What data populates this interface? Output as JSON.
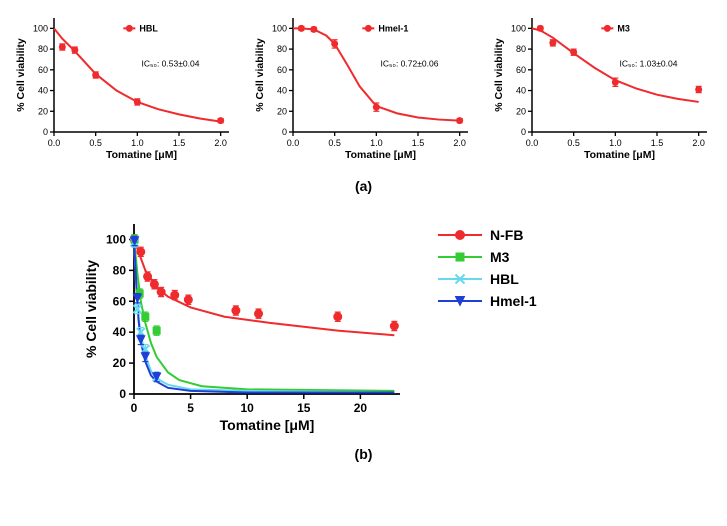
{
  "panelA": {
    "label": "(a)",
    "shared": {
      "xlabel": "Tomatine [μM]",
      "ylabel": "% Cell viability",
      "xlim": [
        0,
        2.1
      ],
      "ylim": [
        0,
        110
      ],
      "xtick_step": 0.5,
      "ytick_step": 20,
      "axis_color": "#000000",
      "tick_fontsize": 9,
      "label_fontsize": 10.5,
      "label_fontweight": "bold",
      "marker": "circle",
      "marker_color": "#ef2b2d",
      "marker_size": 6,
      "line_color": "#ef2b2d",
      "line_width": 2,
      "error_bar_color": "#ef2b2d",
      "background_color": "#ffffff"
    },
    "charts": [
      {
        "legend": "HBL",
        "ic50_label": "IC₅₀: 0.53±0.04",
        "points": [
          {
            "x": 0.1,
            "y": 82,
            "err": 3
          },
          {
            "x": 0.25,
            "y": 79,
            "err": 3
          },
          {
            "x": 0.5,
            "y": 55,
            "err": 3
          },
          {
            "x": 1.0,
            "y": 29,
            "err": 3
          },
          {
            "x": 2.0,
            "y": 11,
            "err": 2
          }
        ],
        "curve": [
          {
            "x": 0.0,
            "y": 100
          },
          {
            "x": 0.1,
            "y": 90
          },
          {
            "x": 0.25,
            "y": 78
          },
          {
            "x": 0.5,
            "y": 56
          },
          {
            "x": 0.75,
            "y": 40
          },
          {
            "x": 1.0,
            "y": 29
          },
          {
            "x": 1.25,
            "y": 22
          },
          {
            "x": 1.5,
            "y": 17
          },
          {
            "x": 1.75,
            "y": 13
          },
          {
            "x": 2.0,
            "y": 10
          }
        ]
      },
      {
        "legend": "Hmel-1",
        "ic50_label": "IC₅₀: 0.72±0.06",
        "points": [
          {
            "x": 0.1,
            "y": 100,
            "err": 2
          },
          {
            "x": 0.25,
            "y": 99,
            "err": 2
          },
          {
            "x": 0.5,
            "y": 85,
            "err": 4
          },
          {
            "x": 1.0,
            "y": 24,
            "err": 4
          },
          {
            "x": 2.0,
            "y": 11,
            "err": 2
          }
        ],
        "curve": [
          {
            "x": 0.0,
            "y": 100
          },
          {
            "x": 0.1,
            "y": 100
          },
          {
            "x": 0.25,
            "y": 99
          },
          {
            "x": 0.4,
            "y": 93
          },
          {
            "x": 0.5,
            "y": 85
          },
          {
            "x": 0.65,
            "y": 65
          },
          {
            "x": 0.8,
            "y": 44
          },
          {
            "x": 1.0,
            "y": 25
          },
          {
            "x": 1.25,
            "y": 18
          },
          {
            "x": 1.5,
            "y": 14
          },
          {
            "x": 1.75,
            "y": 12
          },
          {
            "x": 2.0,
            "y": 11
          }
        ]
      },
      {
        "legend": "M3",
        "ic50_label": "IC₅₀: 1.03±0.04",
        "points": [
          {
            "x": 0.1,
            "y": 100,
            "err": 2
          },
          {
            "x": 0.25,
            "y": 86,
            "err": 3
          },
          {
            "x": 0.5,
            "y": 77,
            "err": 3
          },
          {
            "x": 1.0,
            "y": 48,
            "err": 4
          },
          {
            "x": 2.0,
            "y": 41,
            "err": 3
          }
        ],
        "curve": [
          {
            "x": 0.0,
            "y": 100
          },
          {
            "x": 0.1,
            "y": 98
          },
          {
            "x": 0.25,
            "y": 91
          },
          {
            "x": 0.5,
            "y": 76
          },
          {
            "x": 0.75,
            "y": 62
          },
          {
            "x": 1.0,
            "y": 50
          },
          {
            "x": 1.25,
            "y": 42
          },
          {
            "x": 1.5,
            "y": 36
          },
          {
            "x": 1.75,
            "y": 32
          },
          {
            "x": 2.0,
            "y": 29
          }
        ]
      }
    ]
  },
  "panelB": {
    "label": "(b)",
    "xlabel": "Tomatine [μM]",
    "ylabel": "% Cell viability",
    "xlim": [
      0,
      23.5
    ],
    "ylim": [
      0,
      110
    ],
    "xtick_step": 5,
    "ytick_step": 20,
    "axis_color": "#000000",
    "tick_fontsize": 12,
    "label_fontsize": 14,
    "label_fontweight": "bold",
    "background_color": "#ffffff",
    "line_width": 2,
    "marker_size": 8,
    "error_bar_color_per_series": true,
    "series": [
      {
        "name": "N-FB",
        "color": "#ef2b2d",
        "marker": "circle",
        "points": [
          {
            "x": 0.02,
            "y": 100,
            "err": 3
          },
          {
            "x": 0.6,
            "y": 92,
            "err": 3
          },
          {
            "x": 1.2,
            "y": 76,
            "err": 3
          },
          {
            "x": 1.8,
            "y": 71,
            "err": 3
          },
          {
            "x": 2.4,
            "y": 66,
            "err": 3
          },
          {
            "x": 3.6,
            "y": 64,
            "err": 3
          },
          {
            "x": 4.8,
            "y": 61,
            "err": 3
          },
          {
            "x": 9.0,
            "y": 54,
            "err": 3
          },
          {
            "x": 11.0,
            "y": 52,
            "err": 3
          },
          {
            "x": 18.0,
            "y": 50,
            "err": 3
          },
          {
            "x": 23.0,
            "y": 44,
            "err": 3
          }
        ],
        "curve": [
          {
            "x": 0.0,
            "y": 100
          },
          {
            "x": 0.5,
            "y": 90
          },
          {
            "x": 1.0,
            "y": 80
          },
          {
            "x": 2.0,
            "y": 69
          },
          {
            "x": 3.0,
            "y": 63
          },
          {
            "x": 5.0,
            "y": 56
          },
          {
            "x": 8.0,
            "y": 50
          },
          {
            "x": 12.0,
            "y": 46
          },
          {
            "x": 18.0,
            "y": 41
          },
          {
            "x": 23.0,
            "y": 38
          }
        ]
      },
      {
        "name": "M3",
        "color": "#33cc33",
        "marker": "square",
        "points": [
          {
            "x": 0.05,
            "y": 100,
            "err": 3
          },
          {
            "x": 0.5,
            "y": 65,
            "err": 3
          },
          {
            "x": 1.0,
            "y": 50,
            "err": 3
          },
          {
            "x": 2.0,
            "y": 41,
            "err": 3
          }
        ],
        "curve": [
          {
            "x": 0.0,
            "y": 100
          },
          {
            "x": 0.3,
            "y": 78
          },
          {
            "x": 0.6,
            "y": 60
          },
          {
            "x": 1.0,
            "y": 46
          },
          {
            "x": 1.5,
            "y": 33
          },
          {
            "x": 2.0,
            "y": 24
          },
          {
            "x": 3.0,
            "y": 14
          },
          {
            "x": 4.0,
            "y": 9
          },
          {
            "x": 6.0,
            "y": 5
          },
          {
            "x": 10.0,
            "y": 3
          },
          {
            "x": 23.0,
            "y": 2
          }
        ]
      },
      {
        "name": "HBL",
        "color": "#66d9ef",
        "marker": "x",
        "points": [
          {
            "x": 0.05,
            "y": 98,
            "err": 3
          },
          {
            "x": 0.3,
            "y": 55,
            "err": 3
          },
          {
            "x": 0.6,
            "y": 40,
            "err": 3
          },
          {
            "x": 1.0,
            "y": 29,
            "err": 3
          },
          {
            "x": 2.0,
            "y": 11,
            "err": 3
          }
        ],
        "curve": [
          {
            "x": 0.0,
            "y": 100
          },
          {
            "x": 0.2,
            "y": 68
          },
          {
            "x": 0.4,
            "y": 50
          },
          {
            "x": 0.6,
            "y": 38
          },
          {
            "x": 1.0,
            "y": 25
          },
          {
            "x": 1.5,
            "y": 15
          },
          {
            "x": 2.0,
            "y": 10
          },
          {
            "x": 3.0,
            "y": 6
          },
          {
            "x": 5.0,
            "y": 3
          },
          {
            "x": 10.0,
            "y": 2
          },
          {
            "x": 23.0,
            "y": 1
          }
        ]
      },
      {
        "name": "Hmel-1",
        "color": "#1f3fd6",
        "marker": "triangle-down",
        "points": [
          {
            "x": 0.05,
            "y": 99,
            "err": 3
          },
          {
            "x": 0.3,
            "y": 62,
            "err": 3
          },
          {
            "x": 0.6,
            "y": 35,
            "err": 3
          },
          {
            "x": 1.0,
            "y": 24,
            "err": 3
          },
          {
            "x": 2.0,
            "y": 11,
            "err": 3
          }
        ],
        "curve": [
          {
            "x": 0.0,
            "y": 100
          },
          {
            "x": 0.2,
            "y": 72
          },
          {
            "x": 0.4,
            "y": 48
          },
          {
            "x": 0.6,
            "y": 34
          },
          {
            "x": 1.0,
            "y": 21
          },
          {
            "x": 1.5,
            "y": 12
          },
          {
            "x": 2.0,
            "y": 8
          },
          {
            "x": 3.0,
            "y": 4
          },
          {
            "x": 5.0,
            "y": 2
          },
          {
            "x": 10.0,
            "y": 1
          },
          {
            "x": 23.0,
            "y": 1
          }
        ]
      }
    ]
  }
}
